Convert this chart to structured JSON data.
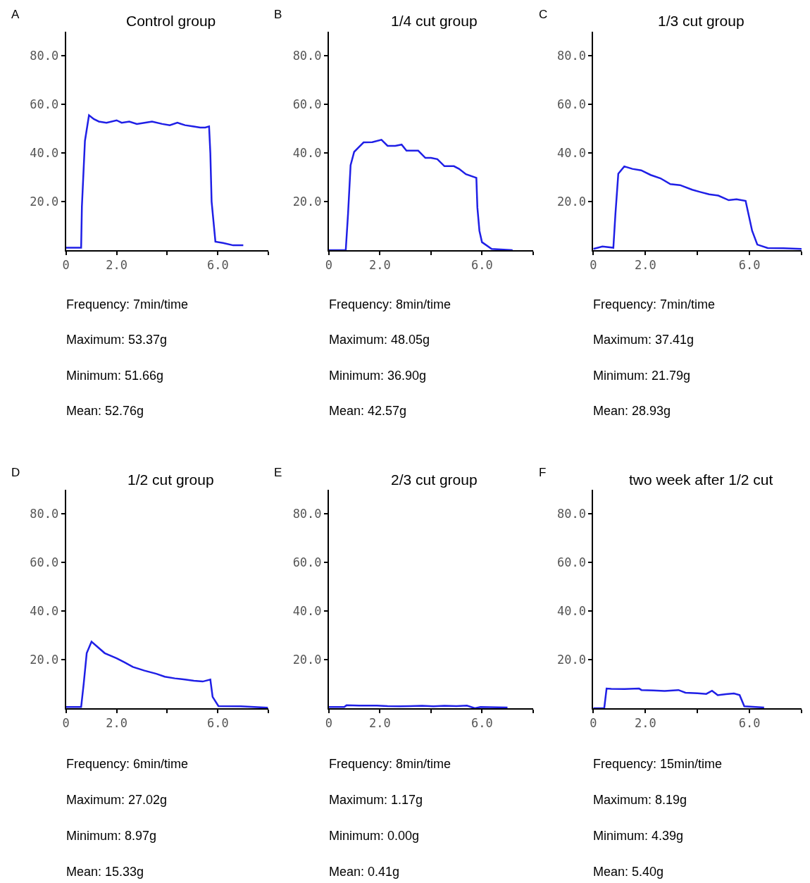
{
  "chart_data": [
    {
      "type": "line",
      "title": "Control group",
      "annotations": [
        "A",
        "Frequency: 7min/time",
        "Maximum: 53.37g",
        "Minimum: 51.66g",
        "Mean: 52.76g"
      ],
      "color": "#1f1fe6",
      "x": [
        0,
        0.6,
        0.63,
        0.75,
        0.91,
        1.1,
        1.3,
        1.6,
        2.0,
        2.2,
        2.5,
        2.8,
        3.1,
        3.4,
        3.8,
        4.1,
        4.4,
        4.7,
        5.0,
        5.3,
        5.5,
        5.65,
        5.7,
        5.75,
        5.9,
        6.2,
        6.6,
        7.0
      ],
      "values": [
        1,
        1,
        18,
        45,
        55.6,
        54,
        53,
        52.5,
        53.5,
        52.5,
        53,
        52,
        52.5,
        53,
        52,
        51.5,
        52.5,
        51.5,
        51,
        50.5,
        50.5,
        51,
        40,
        20,
        3.5,
        3,
        2,
        2
      ],
      "xlim": [
        0,
        8
      ],
      "ylim": [
        0,
        90
      ],
      "xticks": [
        {
          "value": 0,
          "label": "0"
        },
        {
          "value": 2,
          "label": "2.0"
        },
        {
          "value": 4,
          "label": null
        },
        {
          "value": 6,
          "label": "6.0"
        },
        {
          "value": 8,
          "label": null
        }
      ],
      "yticks": [
        {
          "value": 20,
          "label": "20.0"
        },
        {
          "value": 40,
          "label": "40.0"
        },
        {
          "value": 60,
          "label": "60.0"
        },
        {
          "value": 80,
          "label": "80.0"
        }
      ]
    },
    {
      "type": "line",
      "title": "1/4 cut group",
      "annotations": [
        "B",
        "Frequency: 8min/time",
        "Maximum: 48.05g",
        "Minimum: 36.90g",
        "Mean: 42.57g"
      ],
      "color": "#1f1fe6",
      "x": [
        0,
        0.66,
        0.75,
        0.85,
        0.99,
        1.36,
        1.7,
        2.06,
        2.3,
        2.6,
        2.85,
        3.04,
        3.5,
        3.78,
        4.0,
        4.25,
        4.53,
        4.9,
        5.1,
        5.37,
        5.78,
        5.82,
        5.9,
        6.0,
        6.38,
        7.2
      ],
      "values": [
        0,
        0,
        15,
        35,
        40.5,
        44.4,
        44.5,
        45.5,
        43,
        43,
        43.5,
        41,
        41,
        38,
        38,
        37.5,
        34.6,
        34.6,
        33.5,
        31.3,
        29.8,
        17.6,
        8,
        3.3,
        0.5,
        0
      ],
      "xlim": [
        0,
        8
      ],
      "ylim": [
        0,
        90
      ],
      "xticks": [
        {
          "value": 0,
          "label": "0"
        },
        {
          "value": 2,
          "label": "2.0"
        },
        {
          "value": 4,
          "label": null
        },
        {
          "value": 6,
          "label": "6.0"
        },
        {
          "value": 8,
          "label": null
        }
      ],
      "yticks": [
        {
          "value": 20,
          "label": "20.0"
        },
        {
          "value": 40,
          "label": "40.0"
        },
        {
          "value": 60,
          "label": "60.0"
        },
        {
          "value": 80,
          "label": "80.0"
        }
      ]
    },
    {
      "type": "line",
      "title": "1/3 cut group",
      "annotations": [
        "C",
        "Frequency: 7min/time",
        "Maximum: 37.41g",
        "Minimum: 21.79g",
        "Mean: 28.93g"
      ],
      "color": "#1f1fe6",
      "x": [
        0,
        0.35,
        0.77,
        0.85,
        0.96,
        1.19,
        1.5,
        1.84,
        2.2,
        2.58,
        2.96,
        3.33,
        3.8,
        4.1,
        4.45,
        4.8,
        5.2,
        5.5,
        5.85,
        5.95,
        6.1,
        6.3,
        6.7,
        7.3,
        8.0
      ],
      "values": [
        0.5,
        1.5,
        1,
        15,
        31.5,
        34.5,
        33.5,
        32.9,
        31,
        29.6,
        27.2,
        26.8,
        24.9,
        24,
        23,
        22.5,
        20.6,
        21,
        20.3,
        15.4,
        8,
        2.3,
        0.9,
        0.8,
        0.5
      ],
      "xlim": [
        0,
        8
      ],
      "ylim": [
        0,
        90
      ],
      "xticks": [
        {
          "value": 0,
          "label": "0"
        },
        {
          "value": 2,
          "label": "2.0"
        },
        {
          "value": 4,
          "label": null
        },
        {
          "value": 6,
          "label": "6.0"
        },
        {
          "value": 8,
          "label": null
        }
      ],
      "yticks": [
        {
          "value": 20,
          "label": "20.0"
        },
        {
          "value": 40,
          "label": "40.0"
        },
        {
          "value": 60,
          "label": "60.0"
        },
        {
          "value": 80,
          "label": "80.0"
        }
      ]
    },
    {
      "type": "line",
      "title": "1/2 cut group",
      "annotations": [
        "D",
        "Frequency: 6min/time",
        "Maximum: 27.02g",
        "Minimum: 8.97g",
        "Mean: 15.33g"
      ],
      "color": "#1f1fe6",
      "x": [
        0,
        0.6,
        0.7,
        0.82,
        1.01,
        1.53,
        2.0,
        2.3,
        2.64,
        3.1,
        3.57,
        3.9,
        4.3,
        4.7,
        5.05,
        5.4,
        5.7,
        5.79,
        6.02,
        6.9,
        7.97
      ],
      "values": [
        0.5,
        0.5,
        10,
        22.7,
        27.4,
        22.7,
        20.6,
        19,
        17,
        15.5,
        14.2,
        13,
        12.3,
        11.8,
        11.3,
        11,
        11.8,
        4.7,
        0.9,
        0.8,
        0.2
      ],
      "xlim": [
        0,
        8
      ],
      "ylim": [
        0,
        90
      ],
      "xticks": [
        {
          "value": 0,
          "label": "0"
        },
        {
          "value": 2,
          "label": "2.0"
        },
        {
          "value": 4,
          "label": null
        },
        {
          "value": 6,
          "label": "6.0"
        },
        {
          "value": 8,
          "label": null
        }
      ],
      "yticks": [
        {
          "value": 20,
          "label": "20.0"
        },
        {
          "value": 40,
          "label": "40.0"
        },
        {
          "value": 60,
          "label": "60.0"
        },
        {
          "value": 80,
          "label": "80.0"
        }
      ]
    },
    {
      "type": "line",
      "title": "2/3 cut group",
      "annotations": [
        "E",
        "Frequency: 8min/time",
        "Maximum: 1.17g",
        "Minimum: 0.00g",
        "Mean: 0.41g"
      ],
      "color": "#1f1fe6",
      "x": [
        0,
        0.6,
        0.69,
        1.2,
        1.88,
        2.3,
        2.76,
        3.2,
        3.65,
        4.1,
        4.53,
        5.0,
        5.41,
        5.72,
        5.94,
        7.0
      ],
      "values": [
        0.5,
        0.5,
        1.2,
        1.1,
        1.1,
        0.9,
        0.8,
        0.9,
        1,
        0.8,
        1,
        0.9,
        1.1,
        0,
        0.5,
        0.3
      ],
      "xlim": [
        0,
        8
      ],
      "ylim": [
        0,
        90
      ],
      "xticks": [
        {
          "value": 0,
          "label": "0"
        },
        {
          "value": 2,
          "label": "2.0"
        },
        {
          "value": 4,
          "label": null
        },
        {
          "value": 6,
          "label": "6.0"
        },
        {
          "value": 8,
          "label": null
        }
      ],
      "yticks": [
        {
          "value": 20,
          "label": "20.0"
        },
        {
          "value": 40,
          "label": "40.0"
        },
        {
          "value": 60,
          "label": "60.0"
        },
        {
          "value": 80,
          "label": "80.0"
        }
      ]
    },
    {
      "type": "line",
      "title": "two week after 1/2 cut",
      "annotations": [
        "F",
        "Frequency: 15min/time",
        "Maximum: 8.19g",
        "Minimum: 4.39g",
        "Mean: 5.40g"
      ],
      "color": "#1f1fe6",
      "x": [
        0,
        0.42,
        0.51,
        0.69,
        1.2,
        1.76,
        1.85,
        2.3,
        2.74,
        3.27,
        3.54,
        4.0,
        4.34,
        4.56,
        4.78,
        5.1,
        5.4,
        5.62,
        5.8,
        6.56
      ],
      "values": [
        0,
        0,
        8.1,
        8,
        7.9,
        8.1,
        7.5,
        7.3,
        7.1,
        7.5,
        6.4,
        6.2,
        5.9,
        7.2,
        5.4,
        5.8,
        6.1,
        5.4,
        0.8,
        0.3
      ],
      "xlim": [
        0,
        8
      ],
      "ylim": [
        0,
        90
      ],
      "xticks": [
        {
          "value": 0,
          "label": "0"
        },
        {
          "value": 2,
          "label": "2.0"
        },
        {
          "value": 4,
          "label": null
        },
        {
          "value": 6,
          "label": "6.0"
        },
        {
          "value": 8,
          "label": null
        }
      ],
      "yticks": [
        {
          "value": 20,
          "label": "20.0"
        },
        {
          "value": 40,
          "label": "40.0"
        },
        {
          "value": 60,
          "label": "60.0"
        },
        {
          "value": 80,
          "label": "80.0"
        }
      ]
    }
  ]
}
